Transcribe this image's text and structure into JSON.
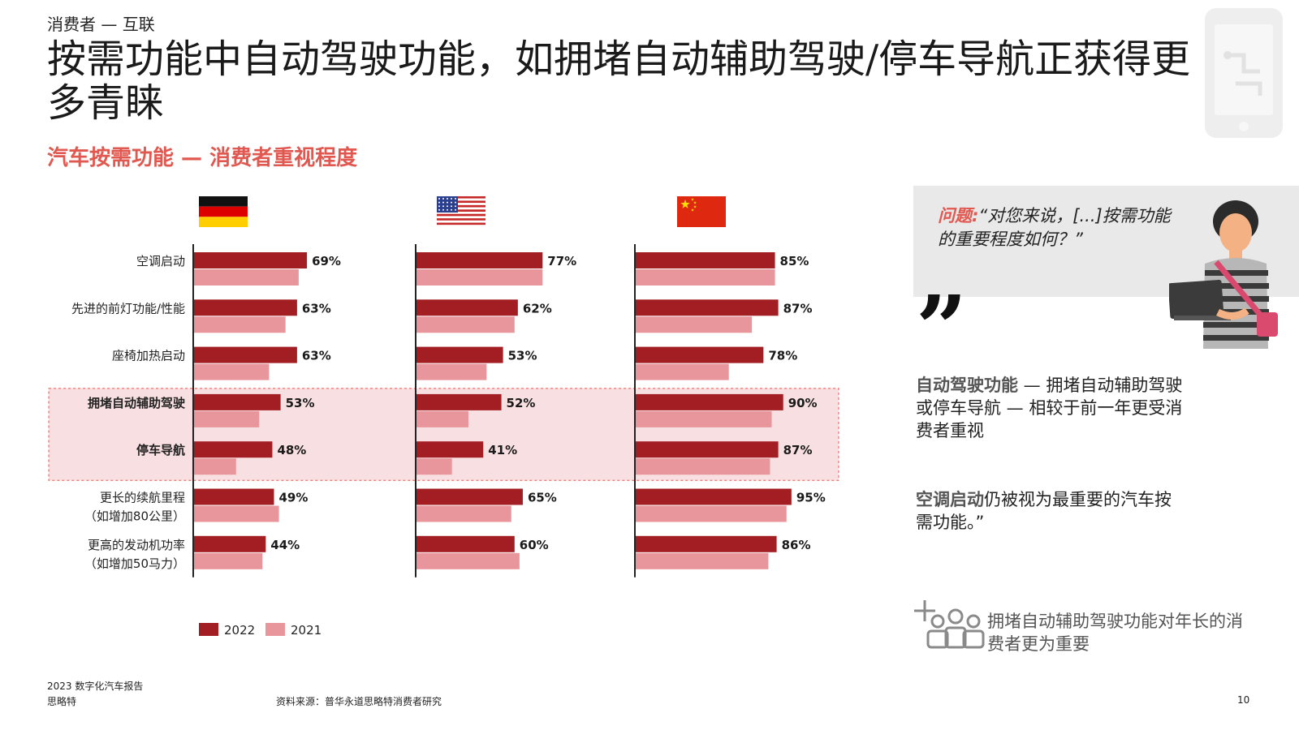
{
  "header": {
    "section": "消费者 — 互联",
    "title": "按需功能中自动驾驶功能，如拥堵自动辅助驾驶/停车导航正获得更多青睐",
    "subtitle": "汽车按需功能 — 消费者重视程度"
  },
  "chart_data": {
    "type": "bar",
    "orientation": "horizontal",
    "categories": [
      "空调启动",
      "先进的前灯功能/性能",
      "座椅加热启动",
      "拥堵自动辅助驾驶",
      "停车导航",
      "更长的续航里程（如增加80公里）",
      "更高的发动机功率（如增加50马力）"
    ],
    "category_lines": [
      [
        "空调启动"
      ],
      [
        "先进的前灯功能/性能"
      ],
      [
        "座椅加热启动"
      ],
      [
        "拥堵自动辅助驾驶"
      ],
      [
        "停车导航"
      ],
      [
        "更长的续航里程",
        "（如增加80公里）"
      ],
      [
        "更高的发动机功率",
        "（如增加50马力）"
      ]
    ],
    "highlighted_categories": [
      "拥堵自动辅助驾驶",
      "停车导航"
    ],
    "groups": [
      {
        "flag": "germany-flag",
        "series_2022": [
          69,
          63,
          63,
          53,
          48,
          49,
          44
        ],
        "series_2021": [
          64,
          56,
          46,
          40,
          26,
          52,
          42
        ]
      },
      {
        "flag": "usa-flag",
        "series_2022": [
          77,
          62,
          53,
          52,
          41,
          65,
          60
        ],
        "series_2021": [
          77,
          60,
          43,
          32,
          22,
          58,
          63
        ]
      },
      {
        "flag": "china-flag",
        "series_2022": [
          85,
          87,
          78,
          90,
          87,
          95,
          86
        ],
        "series_2021": [
          85,
          71,
          57,
          83,
          82,
          92,
          81
        ]
      }
    ],
    "series": [
      {
        "name": "2022",
        "color": "#a31e22"
      },
      {
        "name": "2021",
        "color": "#e8969b"
      }
    ],
    "value_labels_series": "2022",
    "xlim": [
      0,
      100
    ],
    "legend_position": "bottom-left"
  },
  "sidebar": {
    "question_label": "问题:",
    "question_text": "“对您来说，[...]按需功能的重要程度如何？”",
    "quote1_highlight": "自动驾驶功能",
    "quote1_text": " — 拥堵自动辅助驾驶或停车导航 — 相较于前一年更受消费者重视",
    "quote2_highlight": "空调启动",
    "quote2_text": "仍被视为最重要的汽车按需功能。”",
    "insight_text": "拥堵自动辅助驾驶功能对年长的消费者更为重要"
  },
  "footer": {
    "report": "2023 数字化汽车报告",
    "brand": "思略特",
    "source": "资料来源：普华永道思略特消费者研究",
    "page": "10"
  },
  "colors": {
    "accent_red": "#e0584f",
    "bar_2022": "#a31e22",
    "bar_2021": "#e8969b",
    "highlight_fill": "#f8dfe1",
    "highlight_border": "#e0584f"
  }
}
